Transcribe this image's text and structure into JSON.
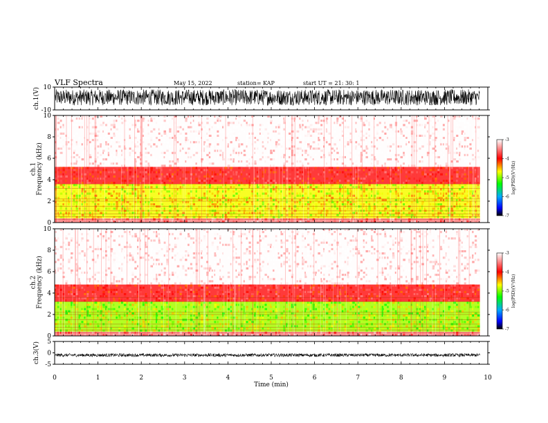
{
  "header": {
    "title": "VLF Spectra",
    "date": "May 15, 2022",
    "station": "station= KAP",
    "start": "start  UT  =   21: 30: 1"
  },
  "chart_data": [
    {
      "type": "line",
      "name": "ch1-waveform",
      "ylabel": "ch.1(V)",
      "ylim": [
        -10,
        10
      ],
      "yticks": [
        10,
        -10
      ],
      "xlim": [
        0,
        10
      ],
      "description_values": {
        "amplitude_band": [
          -6,
          8
        ]
      }
    },
    {
      "type": "heatmap",
      "name": "ch1-spectrogram",
      "ylabel": "ch.1\nFrequency (kHz)",
      "ylim": [
        0,
        10
      ],
      "yticks": [
        0,
        2,
        4,
        6,
        8,
        10
      ],
      "xlim": [
        0,
        10
      ],
      "colorbar": {
        "label": "log(PSD)(V²/Hz)",
        "range": [
          -7,
          -3
        ],
        "ticks": [
          -3,
          -4,
          -5,
          -6,
          -7
        ]
      },
      "bands": [
        {
          "from": 0,
          "to": 0.4,
          "level": -3.5
        },
        {
          "from": 0.4,
          "to": 3.6,
          "level": -4.7
        },
        {
          "from": 3.6,
          "to": 5.2,
          "level": -3.9
        },
        {
          "from": 5.2,
          "to": 10,
          "level": -3.0
        }
      ]
    },
    {
      "type": "heatmap",
      "name": "ch2-spectrogram",
      "ylabel": "ch.2\nFrequency (kHz)",
      "ylim": [
        0,
        10
      ],
      "yticks": [
        0,
        2,
        4,
        6,
        8,
        10
      ],
      "xlim": [
        0,
        10
      ],
      "colorbar": {
        "label": "log(PSD)(V²/Hz)",
        "range": [
          -7,
          -3
        ],
        "ticks": [
          -3,
          -4,
          -5,
          -6,
          -7
        ]
      },
      "bands": [
        {
          "from": 0,
          "to": 0.4,
          "level": -3.5
        },
        {
          "from": 0.4,
          "to": 3.2,
          "level": -4.9
        },
        {
          "from": 3.2,
          "to": 4.8,
          "level": -3.9
        },
        {
          "from": 4.8,
          "to": 10,
          "level": -3.0
        }
      ]
    },
    {
      "type": "line",
      "name": "ch3-waveform",
      "ylabel": "ch.3(V)",
      "ylim": [
        -5,
        5
      ],
      "yticks": [
        5,
        0,
        -5
      ],
      "xlim": [
        0,
        10
      ],
      "xlabel": "Time  (min)",
      "xticks": [
        0,
        1,
        2,
        3,
        4,
        5,
        6,
        7,
        8,
        9,
        10
      ],
      "description_values": {
        "amplitude_band": [
          -1.7,
          -0.3
        ]
      }
    }
  ],
  "data_end_minute": 9.82
}
